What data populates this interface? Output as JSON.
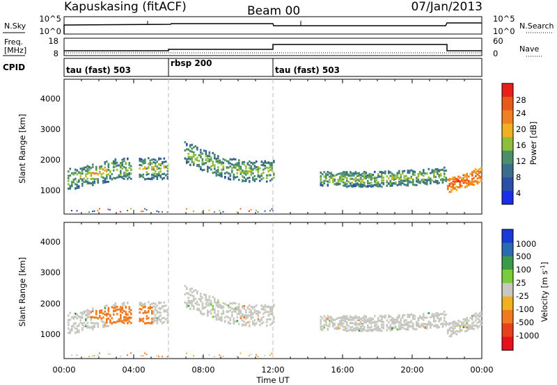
{
  "header": {
    "station": "Kapuskasing (fitACF)",
    "beam": "Beam 00",
    "date": "07/Jan/2013"
  },
  "status_panels": {
    "nsky_label": "N.Sky",
    "nsky_ticks": [
      "10^5",
      "10^0"
    ],
    "nsearch_label": "N.Search",
    "nsearch_ticks": [
      "10^5",
      "10^0"
    ],
    "freq_label_line1": "Freq.",
    "freq_label_line2": "[MHz]",
    "freq_ticks": [
      "18",
      "8"
    ],
    "nave_label": "Nave",
    "nave_ticks": [
      "60",
      "0"
    ],
    "cpid_label": "CPID",
    "cpid_segments": [
      {
        "label": "tau (fast) 503",
        "start_hour": 0,
        "end_hour": 6
      },
      {
        "label": "rbsp 200",
        "start_hour": 6,
        "end_hour": 12
      },
      {
        "label": "tau (fast) 503",
        "start_hour": 12,
        "end_hour": 24
      }
    ]
  },
  "chart_data": [
    {
      "type": "heatmap",
      "quantity": "power",
      "ylabel": "Slant Range [km]",
      "yticks": [
        "1000",
        "2000",
        "3000",
        "4000"
      ],
      "ylim": [
        180,
        4600
      ],
      "xlim_hours": [
        0,
        24
      ],
      "colorbar_label": "Power [dB]",
      "colorbar_ticks": [
        "4",
        "8",
        "12",
        "16",
        "20",
        "24",
        "28"
      ],
      "colorbar_range": [
        0,
        30
      ],
      "colors": [
        "#1a2ee8",
        "#2a4fa8",
        "#3a6e8a",
        "#4a8f6a",
        "#8fbf3a",
        "#f0b020",
        "#f08020",
        "#e85a1a",
        "#e8201a"
      ]
    },
    {
      "type": "heatmap",
      "quantity": "velocity",
      "ylabel": "Slant Range [km]",
      "yticks": [
        "1000",
        "2000",
        "3000",
        "4000"
      ],
      "ylim": [
        180,
        4600
      ],
      "xlim_hours": [
        0,
        24
      ],
      "colorbar_label": "Velocity [m s",
      "colorbar_label_exp": "-1",
      "colorbar_label_end": "]",
      "colorbar_ticks": [
        "1000",
        "500",
        "100",
        "25",
        "-25",
        "-100",
        "-500",
        "-1000"
      ],
      "colors": [
        "#1a3ad8",
        "#2a6ab0",
        "#3a9a4a",
        "#7acc3a",
        "#c8c8c0",
        "#f0b020",
        "#f07a20",
        "#e8401a",
        "#e8101a"
      ]
    }
  ],
  "xaxis": {
    "label": "Time UT",
    "ticks": [
      "00:00",
      "04:00",
      "08:00",
      "12:00",
      "16:00",
      "20:00",
      "00:00"
    ]
  }
}
